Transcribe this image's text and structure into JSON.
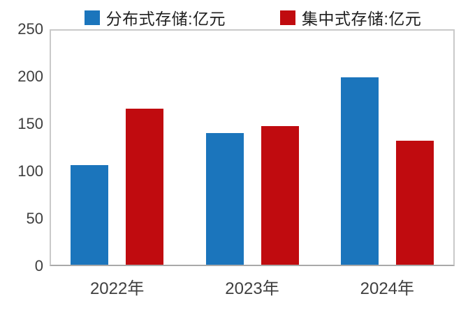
{
  "chart_data": {
    "type": "bar",
    "title": "",
    "xlabel": "",
    "ylabel": "",
    "categories": [
      "2022年",
      "2023年",
      "2024年"
    ],
    "series": [
      {
        "name": "分布式存储:亿元",
        "color": "#1b75bc",
        "values": [
          105,
          139,
          198
        ]
      },
      {
        "name": "集中式存储:亿元",
        "color": "#c00b0f",
        "values": [
          165,
          146,
          131
        ]
      }
    ],
    "ylim": [
      0,
      250
    ],
    "yticks": [
      0,
      50,
      100,
      150,
      200,
      250
    ],
    "grid": false,
    "legend_position": "top",
    "plot_background": "#ffffff",
    "axis_text_color": "#3f3f3f",
    "plot_border_color": "#c9c9c9"
  }
}
